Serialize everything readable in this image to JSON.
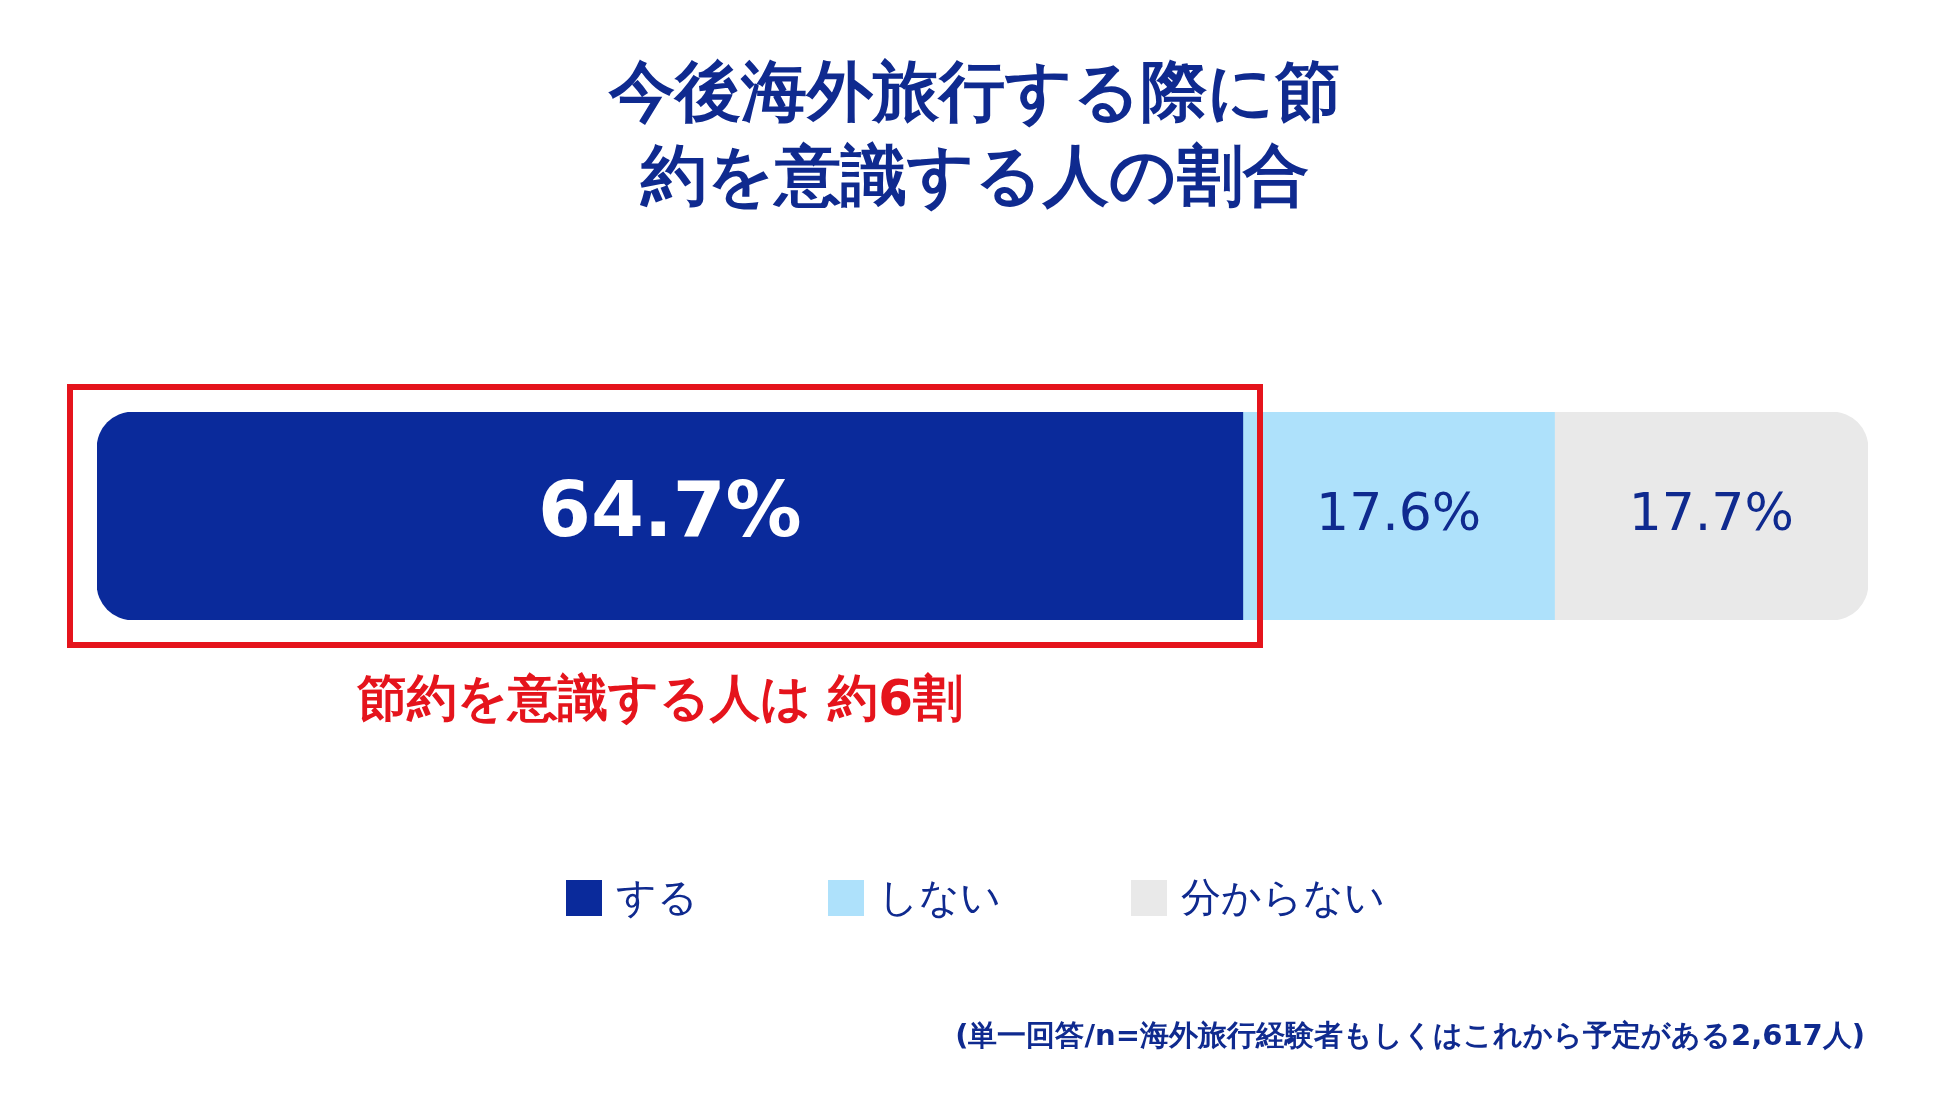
{
  "chart_data": {
    "type": "bar",
    "orientation": "horizontal",
    "stacked": true,
    "title": "今後海外旅行する際に節約を意識する人の割合",
    "categories": [
      null
    ],
    "series": [
      {
        "name": "する",
        "color": "#0a2a9b",
        "values": [
          64.7
        ],
        "value_labels": [
          "64.7%"
        ]
      },
      {
        "name": "しない",
        "color": "#aee1fb",
        "values": [
          17.6
        ],
        "value_labels": [
          "17.6%"
        ]
      },
      {
        "name": "分からない",
        "color": "#e9e9e9",
        "values": [
          17.7
        ],
        "value_labels": [
          "17.7%"
        ]
      }
    ],
    "legend": "bottom",
    "annotations": [
      "節約を意識する人は 約6割",
      "(単一回答/n=海外旅行経験者もしくはこれから予定がある2,617人)"
    ]
  }
}
